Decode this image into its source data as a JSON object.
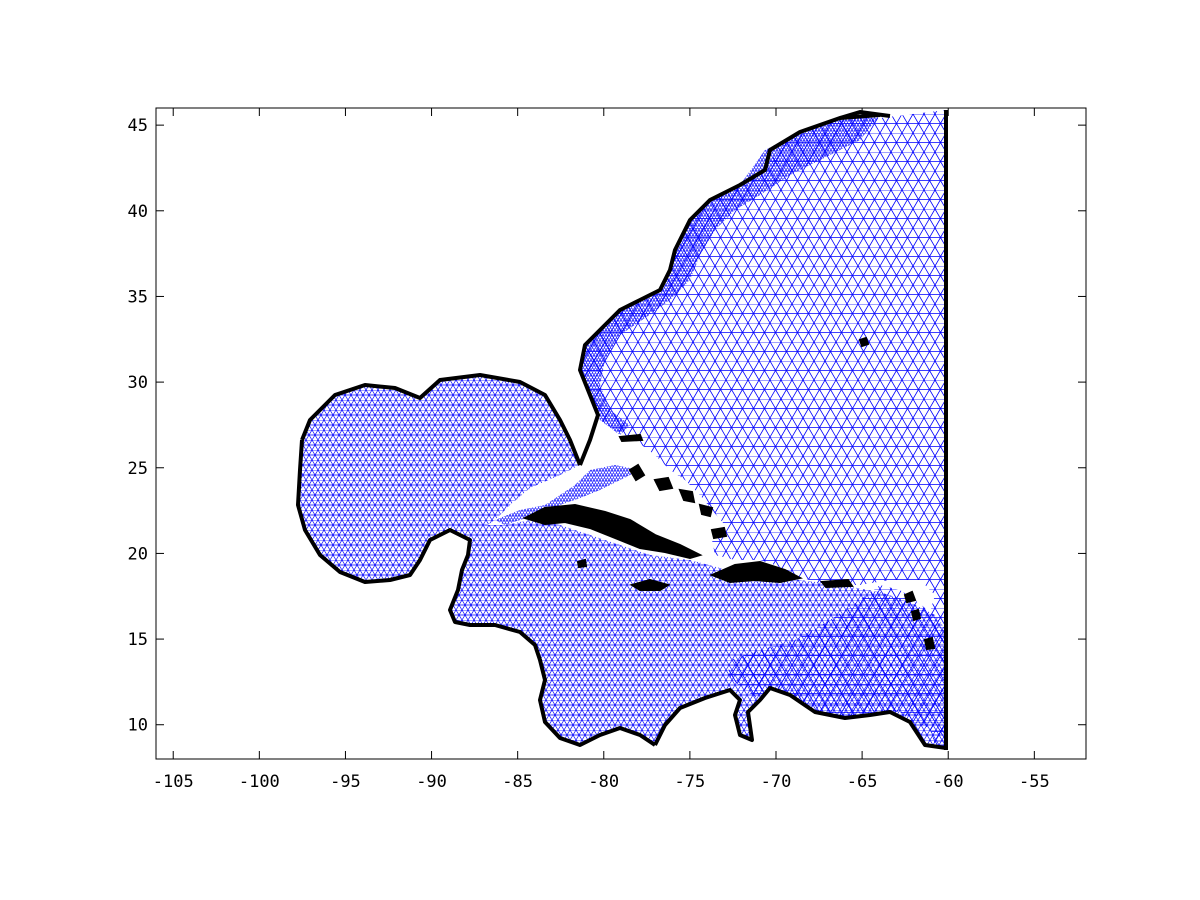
{
  "map": {
    "x_axis": {
      "range": [
        -106,
        -52
      ],
      "tick_values": [
        -105,
        -100,
        -95,
        -90,
        -85,
        -80,
        -75,
        -70,
        -65,
        -60,
        -55
      ],
      "tick_labels": [
        "-105",
        "-100",
        "-95",
        "-90",
        "-85",
        "-80",
        "-75",
        "-70",
        "-65",
        "-60",
        "-55"
      ]
    },
    "y_axis": {
      "range": [
        8,
        46
      ],
      "tick_values": [
        10,
        15,
        20,
        25,
        30,
        35,
        40,
        45
      ],
      "tick_labels": [
        "10",
        "15",
        "20",
        "25",
        "30",
        "35",
        "40",
        "45"
      ]
    },
    "colors": {
      "mesh": "#0000ff",
      "coastline": "#000000",
      "background": "#ffffff"
    },
    "open_boundary_longitude": -60
  }
}
